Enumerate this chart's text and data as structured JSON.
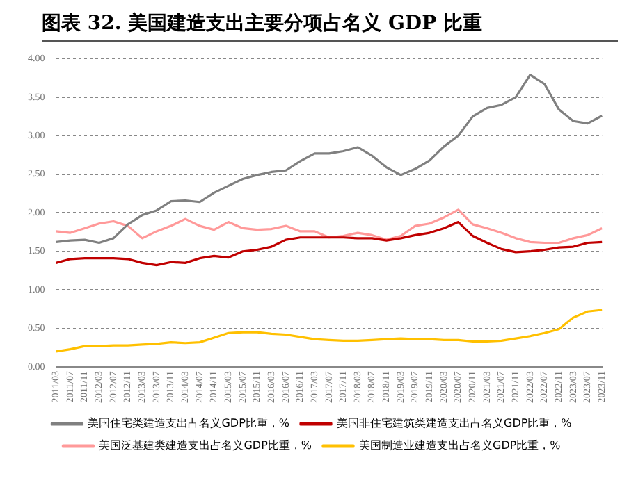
{
  "chart_data": {
    "type": "line",
    "title": "图表 32. 美国建造支出主要分项占名义 GDP 比重",
    "categories": [
      "2011/03",
      "2011/07",
      "2011/11",
      "2012/03",
      "2012/07",
      "2012/11",
      "2013/03",
      "2013/07",
      "2013/11",
      "2014/03",
      "2014/07",
      "2014/11",
      "2015/03",
      "2015/07",
      "2015/11",
      "2016/03",
      "2016/07",
      "2016/11",
      "2017/03",
      "2017/07",
      "2017/11",
      "2018/03",
      "2018/07",
      "2018/11",
      "2019/03",
      "2019/07",
      "2019/11",
      "2020/03",
      "2020/07",
      "2020/11",
      "2021/03",
      "2021/07",
      "2021/11",
      "2022/03",
      "2022/07",
      "2022/11",
      "2023/03",
      "2023/07",
      "2023/11"
    ],
    "series": [
      {
        "name": "美国住宅类建造支出占名义GDP比重，%",
        "color": "#808080",
        "values": [
          1.62,
          1.64,
          1.65,
          1.61,
          1.67,
          1.85,
          1.97,
          2.03,
          2.15,
          2.16,
          2.14,
          2.26,
          2.35,
          2.44,
          2.49,
          2.53,
          2.55,
          2.67,
          2.77,
          2.77,
          2.8,
          2.85,
          2.74,
          2.59,
          2.49,
          2.57,
          2.68,
          2.86,
          3.0,
          3.25,
          3.36,
          3.4,
          3.5,
          3.79,
          3.67,
          3.34,
          3.19,
          3.16,
          3.26
        ]
      },
      {
        "name": "美国非住宅建筑类建造支出占名义GDP比重，%",
        "color": "#c00000",
        "values": [
          1.35,
          1.4,
          1.41,
          1.41,
          1.41,
          1.4,
          1.35,
          1.32,
          1.36,
          1.35,
          1.41,
          1.44,
          1.42,
          1.5,
          1.52,
          1.56,
          1.65,
          1.68,
          1.68,
          1.68,
          1.68,
          1.67,
          1.67,
          1.64,
          1.67,
          1.71,
          1.74,
          1.8,
          1.88,
          1.7,
          1.61,
          1.53,
          1.49,
          1.5,
          1.52,
          1.55,
          1.56,
          1.61,
          1.62
        ]
      },
      {
        "name": "美国泛基建类建造支出占名义GDP比重，%",
        "color": "#ff9999",
        "values": [
          1.76,
          1.74,
          1.8,
          1.86,
          1.89,
          1.83,
          1.67,
          1.76,
          1.83,
          1.92,
          1.83,
          1.78,
          1.88,
          1.8,
          1.78,
          1.79,
          1.83,
          1.76,
          1.76,
          1.68,
          1.7,
          1.74,
          1.71,
          1.65,
          1.7,
          1.83,
          1.86,
          1.94,
          2.04,
          1.85,
          1.8,
          1.74,
          1.67,
          1.62,
          1.61,
          1.61,
          1.67,
          1.71,
          1.8
        ]
      },
      {
        "name": "美国制造业建造支出占名义GDP比重，%",
        "color": "#ffc000",
        "values": [
          0.2,
          0.23,
          0.27,
          0.27,
          0.28,
          0.28,
          0.29,
          0.3,
          0.32,
          0.31,
          0.32,
          0.38,
          0.44,
          0.45,
          0.45,
          0.43,
          0.42,
          0.39,
          0.36,
          0.35,
          0.34,
          0.34,
          0.35,
          0.36,
          0.37,
          0.36,
          0.36,
          0.35,
          0.35,
          0.33,
          0.33,
          0.34,
          0.37,
          0.4,
          0.44,
          0.49,
          0.64,
          0.72,
          0.74
        ]
      }
    ],
    "ylim": [
      0,
      4
    ],
    "yticks": [
      {
        "value": 0,
        "label": "0.00"
      },
      {
        "value": 0.5,
        "label": "0.50"
      },
      {
        "value": 1,
        "label": "1.00"
      },
      {
        "value": 1.5,
        "label": "1.50"
      },
      {
        "value": 2,
        "label": "2.00"
      },
      {
        "value": 2.5,
        "label": "2.50"
      },
      {
        "value": 3,
        "label": "3.00"
      },
      {
        "value": 3.5,
        "label": "3.50"
      },
      {
        "value": 4,
        "label": "4.00"
      }
    ],
    "grid": "y",
    "legend": "bottom",
    "marker": "none",
    "line_style": "solid"
  }
}
